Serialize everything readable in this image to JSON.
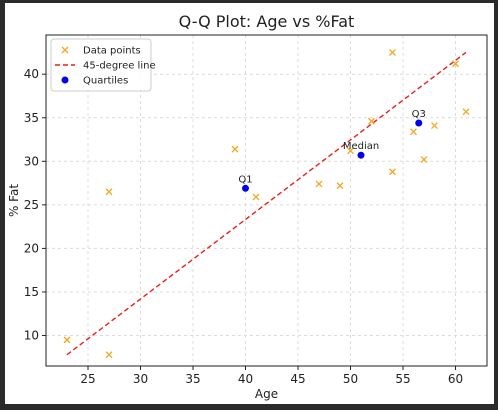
{
  "chart_data": {
    "type": "scatter",
    "title": "Q-Q Plot: Age vs %Fat",
    "xlabel": "Age",
    "ylabel": "% Fat",
    "xlim": [
      21,
      63
    ],
    "ylim": [
      6.5,
      44.5
    ],
    "xticks": [
      25,
      30,
      35,
      40,
      45,
      50,
      55,
      60
    ],
    "yticks": [
      10,
      15,
      20,
      25,
      30,
      35,
      40
    ],
    "grid": true,
    "legend_position": "top-left",
    "colors": {
      "points": "#f5a623",
      "line": "#e8201a",
      "quartiles": "#0000ee"
    },
    "series": [
      {
        "name": "Data points",
        "marker": "x",
        "points": [
          {
            "x": 23,
            "y": 9.5
          },
          {
            "x": 27,
            "y": 26.5
          },
          {
            "x": 27,
            "y": 7.8
          },
          {
            "x": 39,
            "y": 31.4
          },
          {
            "x": 41,
            "y": 25.9
          },
          {
            "x": 47,
            "y": 27.4
          },
          {
            "x": 49,
            "y": 27.2
          },
          {
            "x": 50,
            "y": 31.2
          },
          {
            "x": 52,
            "y": 34.6
          },
          {
            "x": 54,
            "y": 42.5
          },
          {
            "x": 54,
            "y": 28.8
          },
          {
            "x": 56,
            "y": 33.4
          },
          {
            "x": 57,
            "y": 30.2
          },
          {
            "x": 58,
            "y": 34.1
          },
          {
            "x": 60,
            "y": 41.2
          },
          {
            "x": 61,
            "y": 35.7
          }
        ]
      },
      {
        "name": "45-degree line",
        "line_style": "dashed",
        "points": [
          {
            "x": 23,
            "y": 7.8
          },
          {
            "x": 61,
            "y": 42.5
          }
        ]
      },
      {
        "name": "Quartiles",
        "marker": "circle",
        "points": [
          {
            "x": 40,
            "y": 26.9,
            "label": "Q1"
          },
          {
            "x": 51,
            "y": 30.7,
            "label": "Median"
          },
          {
            "x": 56.5,
            "y": 34.4,
            "label": "Q3"
          }
        ]
      }
    ]
  }
}
